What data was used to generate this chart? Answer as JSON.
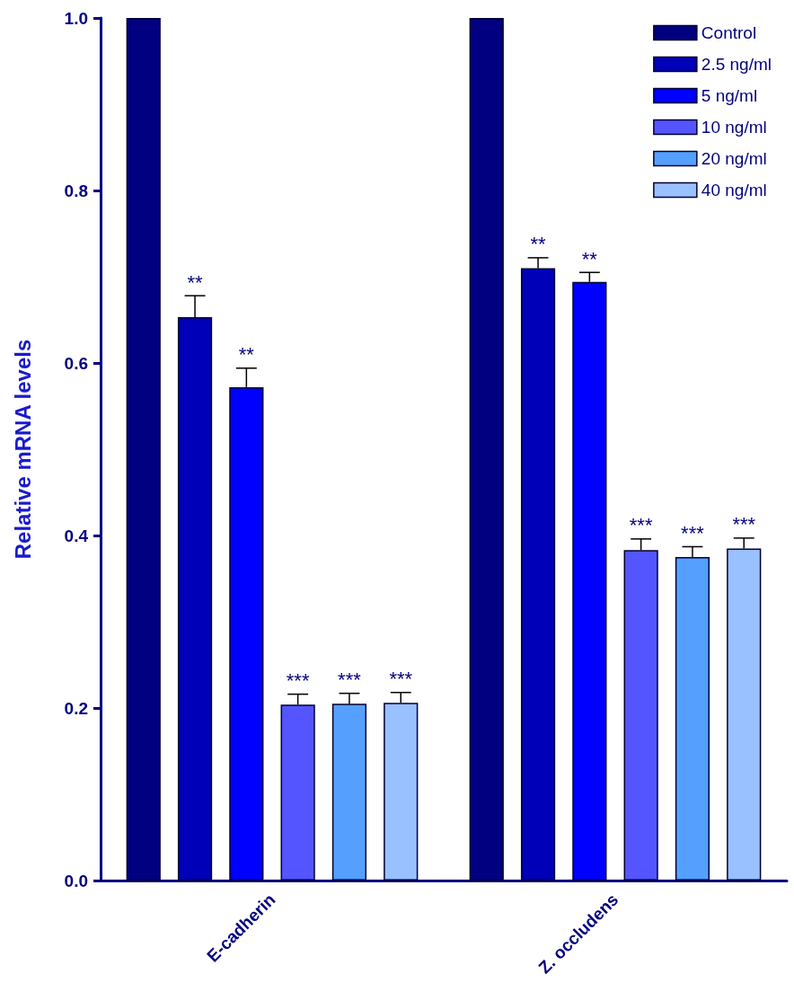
{
  "chart_data": {
    "type": "bar",
    "ylabel": "Relative mRNA levels",
    "categories": [
      "E-cadherin",
      "Z. occludens"
    ],
    "series": [
      {
        "name": "Control",
        "color": "#000080",
        "values": [
          1.0,
          1.0
        ]
      },
      {
        "name": "2.5 ng/ml",
        "color": "#0000b8",
        "values": [
          0.653,
          0.71
        ],
        "errors": [
          [
            0.653,
            0.678
          ],
          [
            0.71,
            0.722
          ]
        ],
        "value_labels": [
          "**",
          "**"
        ]
      },
      {
        "name": "5 ng/ml",
        "color": "#0000ff",
        "values": [
          0.572,
          0.694
        ],
        "errors": [
          [
            0.572,
            0.594
          ],
          [
            0.694,
            0.705
          ]
        ],
        "value_labels": [
          "**",
          "**"
        ]
      },
      {
        "name": "10 ng/ml",
        "color": "#5555ff",
        "values": [
          0.204,
          0.383
        ],
        "errors": [
          [
            0.204,
            0.216
          ],
          [
            0.383,
            0.396
          ]
        ],
        "value_labels": [
          "***",
          "***"
        ]
      },
      {
        "name": "20 ng/ml",
        "color": "#55a0ff",
        "values": [
          0.205,
          0.375
        ],
        "errors": [
          [
            0.205,
            0.217
          ],
          [
            0.375,
            0.387
          ]
        ],
        "value_labels": [
          "***",
          "***"
        ]
      },
      {
        "name": "40 ng/ml",
        "color": "#99c0ff",
        "values": [
          0.206,
          0.385
        ],
        "errors": [
          [
            0.206,
            0.218
          ],
          [
            0.385,
            0.397
          ]
        ],
        "value_labels": [
          "***",
          "***"
        ]
      }
    ],
    "ylim": [
      0,
      1
    ],
    "yticks": [
      {
        "value": 0,
        "label": "0.0"
      },
      {
        "value": 0.2,
        "label": "0.2"
      },
      {
        "value": 0.4,
        "label": "0.4"
      },
      {
        "value": 0.6,
        "label": "0.6"
      },
      {
        "value": 0.8,
        "label": "0.8"
      },
      {
        "value": 1,
        "label": "1.0"
      }
    ],
    "grid": false,
    "legend": "top right"
  }
}
